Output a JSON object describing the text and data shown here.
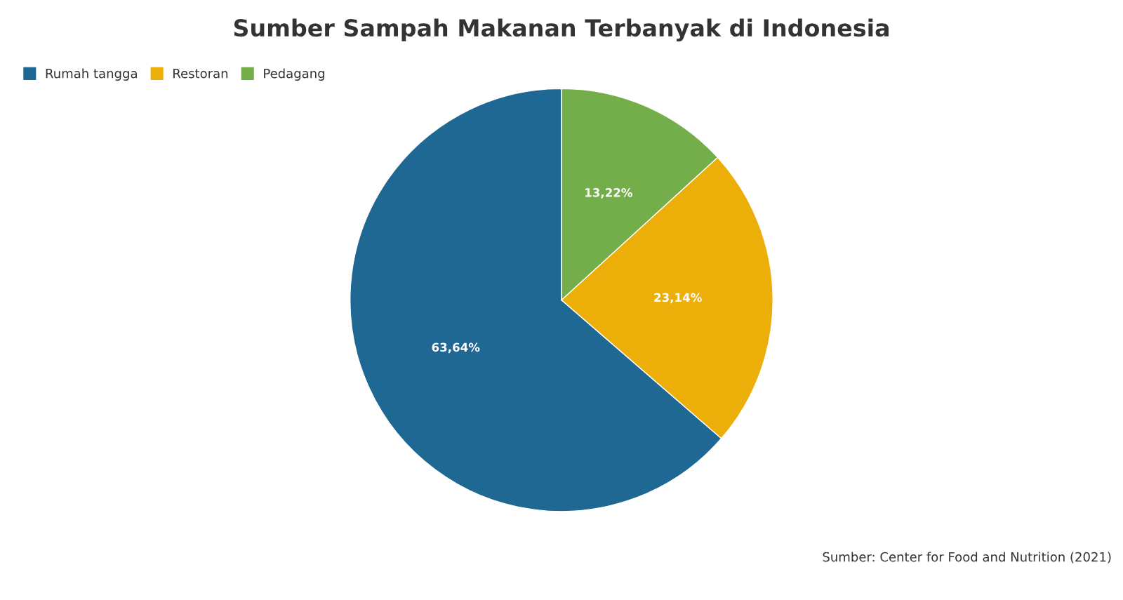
{
  "chart_data": {
    "type": "pie",
    "title": "Sumber Sampah Makanan Terbanyak di Indonesia",
    "categories": [
      "Rumah tangga",
      "Restoran",
      "Pedagang"
    ],
    "values": [
      63.64,
      23.14,
      13.22
    ],
    "colors": [
      "#1f6894",
      "#ecae09",
      "#73ae4a"
    ],
    "value_labels": [
      "63,64%",
      "23,14%",
      "13,22%"
    ],
    "legend": "top left",
    "annotations": [
      "Sumber: Center for Food and Nutrition (2021)"
    ]
  }
}
